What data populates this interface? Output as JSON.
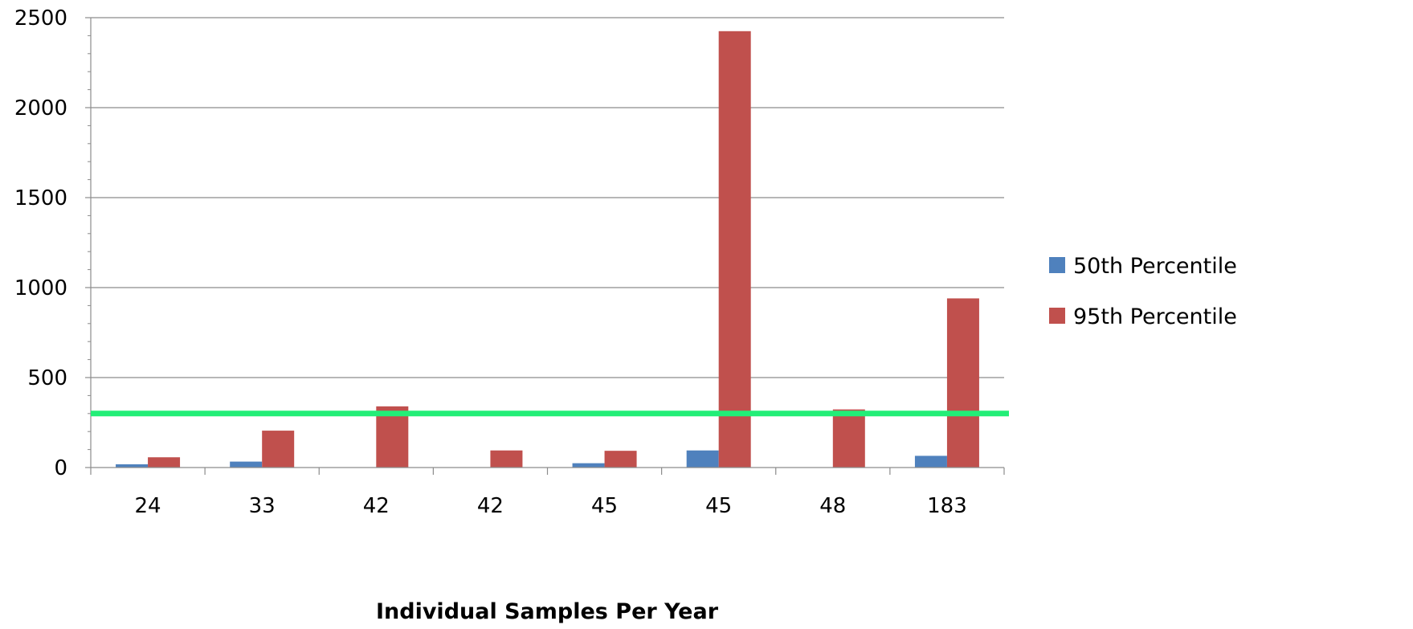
{
  "chart_data": {
    "type": "bar",
    "title": "",
    "xlabel": "Individual Samples Per Year",
    "ylabel": "",
    "categories": [
      "24",
      "33",
      "42",
      "42",
      "45",
      "45",
      "48",
      "183"
    ],
    "series": [
      {
        "name": "50th Percentile",
        "color": "#4F81BD",
        "values": [
          18,
          33,
          0,
          0,
          24,
          95,
          0,
          65
        ]
      },
      {
        "name": "95th Percentile",
        "color": "#C0504D",
        "values": [
          57,
          205,
          340,
          95,
          93,
          2425,
          323,
          940
        ]
      }
    ],
    "ylim": [
      0,
      2500
    ],
    "yticks": [
      0,
      500,
      1000,
      1500,
      2000,
      2500
    ],
    "reference_line": {
      "value": 300,
      "color": "#22EE77"
    },
    "grid": true,
    "legend_position": "right"
  }
}
